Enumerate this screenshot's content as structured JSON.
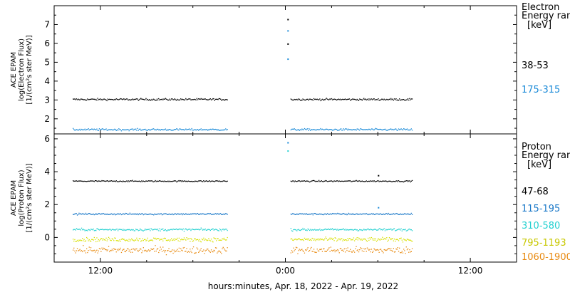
{
  "chart_data": [
    {
      "type": "scatter",
      "panel": "electron",
      "ylabel_lines": [
        "ACE EPAM",
        "log(Electron Flux)",
        "[1/(cm²s ster MeV)]"
      ],
      "ylim": [
        1.2,
        8.0
      ],
      "yticks": [
        2,
        3,
        4,
        5,
        6,
        7
      ],
      "legend_title": [
        "Electron",
        "Energy ran",
        "[keV]"
      ],
      "gap_hours": [
        -3.75,
        0.3
      ],
      "spikes": [
        {
          "x": 0.13,
          "y": 7.3,
          "color": "#000000"
        },
        {
          "x": 0.13,
          "y": 6.0,
          "color": "#000000"
        },
        {
          "x": 0.13,
          "y": 6.7,
          "color": "#1a8ad8"
        },
        {
          "x": 0.13,
          "y": 5.2,
          "color": "#1a8ad8"
        }
      ],
      "series": [
        {
          "name": "38-53",
          "color": "#000000",
          "level": 3.05,
          "noise": 0.05,
          "x_start": -13.8,
          "x_end": 8.2
        },
        {
          "name": "175-315",
          "color": "#1a8ad8",
          "level": 1.45,
          "noise": 0.05,
          "x_start": -13.8,
          "x_end": 8.2
        }
      ]
    },
    {
      "type": "scatter",
      "panel": "proton",
      "ylabel_lines": [
        "ACE EPAM",
        "log(Proton Flux)",
        "[1/(cm²s ster MeV)]"
      ],
      "ylim": [
        -1.5,
        6.3
      ],
      "yticks": [
        0,
        2,
        4,
        6
      ],
      "legend_title": [
        "Proton",
        "Energy ran",
        "[keV]"
      ],
      "gap_hours": [
        -3.75,
        0.3
      ],
      "spikes": [
        {
          "x": 0.13,
          "y": 5.8,
          "color": "#1a8ad8"
        },
        {
          "x": 0.13,
          "y": 5.3,
          "color": "#22d0d0"
        },
        {
          "x": 6.0,
          "y": 3.8,
          "color": "#000000"
        },
        {
          "x": 6.0,
          "y": 1.85,
          "color": "#1a8ad8"
        }
      ],
      "series": [
        {
          "name": "47-68",
          "color": "#000000",
          "level": 3.45,
          "noise": 0.04,
          "x_start": -13.8,
          "x_end": 8.2
        },
        {
          "name": "115-195",
          "color": "#1a78c8",
          "level": 1.45,
          "noise": 0.05,
          "x_start": -13.8,
          "x_end": 8.2
        },
        {
          "name": "310-580",
          "color": "#22d0d0",
          "level": 0.5,
          "noise": 0.07,
          "x_start": -13.8,
          "x_end": 8.2
        },
        {
          "name": "795-1193",
          "color": "#d8e000",
          "level": -0.1,
          "noise": 0.12,
          "x_start": -13.8,
          "x_end": 8.2
        },
        {
          "name": "1060-1900",
          "color": "#e88a10",
          "level": -0.75,
          "noise": 0.2,
          "x_start": -13.8,
          "x_end": 8.2
        }
      ]
    }
  ],
  "xaxis": {
    "label": "hours:minutes, Apr. 18, 2022 - Apr. 19, 2022",
    "xlim_hours": [
      -15.0,
      15.0
    ],
    "ticks": [
      {
        "hours": -12,
        "label": "12:00"
      },
      {
        "hours": 0,
        "label": "0:00"
      },
      {
        "hours": 12,
        "label": "12:00"
      }
    ]
  }
}
